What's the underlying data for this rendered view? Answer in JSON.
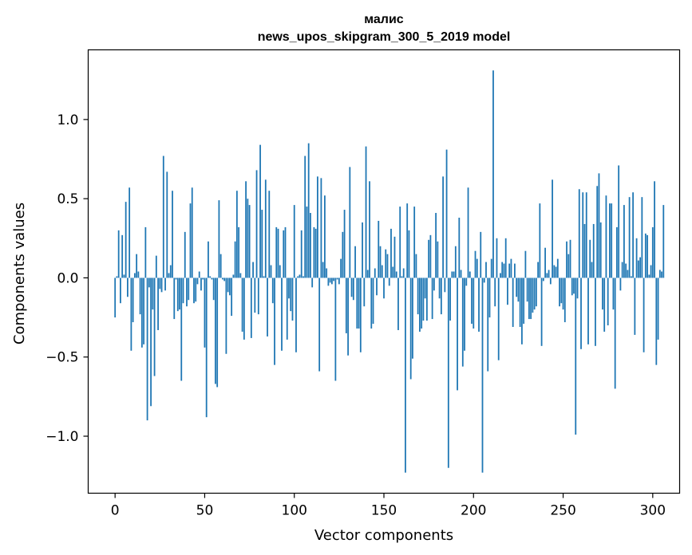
{
  "chart_data": {
    "type": "bar",
    "title": "малис",
    "subtitle": "news_upos_skipgram_300_5_2019 model",
    "xlabel": "Vector components",
    "ylabel": "Components values",
    "xlim": [
      -15,
      315
    ],
    "ylim": [
      -1.36,
      1.44
    ],
    "xticks": [
      0,
      50,
      100,
      150,
      200,
      250,
      300
    ],
    "xtick_labels": [
      "0",
      "50",
      "100",
      "150",
      "200",
      "250",
      "300"
    ],
    "yticks": [
      -1.0,
      -0.5,
      0.0,
      0.5,
      1.0
    ],
    "ytick_labels": [
      "−1.0",
      "−0.5",
      "0.0",
      "0.5",
      "1.0"
    ],
    "grid": false,
    "bar_color": "#1f77b4",
    "values": [
      -0.25,
      0.01,
      0.3,
      -0.16,
      0.27,
      0.02,
      0.48,
      -0.12,
      0.57,
      -0.46,
      -0.28,
      0.03,
      0.15,
      0.04,
      -0.23,
      -0.44,
      -0.42,
      0.32,
      -0.9,
      -0.06,
      -0.81,
      -0.2,
      -0.62,
      0.14,
      -0.33,
      -0.07,
      -0.09,
      0.77,
      -0.08,
      0.67,
      0.03,
      0.08,
      0.55,
      -0.26,
      -0.01,
      -0.21,
      -0.2,
      -0.65,
      -0.16,
      0.29,
      -0.18,
      -0.14,
      0.47,
      0.57,
      -0.16,
      -0.15,
      -0.04,
      0.04,
      -0.08,
      -0.01,
      -0.44,
      -0.88,
      0.23,
      0.01,
      -0.01,
      -0.14,
      -0.67,
      -0.69,
      0.49,
      0.15,
      -0.01,
      -0.02,
      -0.48,
      -0.09,
      -0.11,
      -0.24,
      0.02,
      0.23,
      0.55,
      0.32,
      0.03,
      -0.34,
      -0.39,
      0.61,
      0.5,
      0.46,
      -0.38,
      0.1,
      -0.22,
      0.68,
      -0.23,
      0.84,
      0.43,
      0.01,
      0.62,
      -0.37,
      0.55,
      0.08,
      -0.16,
      -0.55,
      0.32,
      0.31,
      0.08,
      -0.46,
      0.3,
      0.32,
      -0.39,
      -0.13,
      -0.21,
      -0.27,
      0.46,
      -0.47,
      0.01,
      0.02,
      0.3,
      0.01,
      0.77,
      0.45,
      0.85,
      0.41,
      -0.06,
      0.32,
      0.31,
      0.64,
      -0.59,
      0.63,
      0.1,
      0.52,
      0.06,
      -0.05,
      -0.03,
      -0.04,
      -0.02,
      -0.65,
      -0.01,
      -0.04,
      0.12,
      0.29,
      0.43,
      -0.35,
      -0.49,
      0.7,
      -0.12,
      -0.14,
      0.2,
      -0.32,
      -0.32,
      -0.47,
      0.35,
      -0.18,
      0.83,
      0.05,
      0.61,
      -0.32,
      -0.29,
      0.06,
      -0.11,
      0.36,
      0.2,
      0.08,
      -0.13,
      0.18,
      0.15,
      -0.05,
      0.31,
      0.07,
      0.26,
      0.04,
      -0.33,
      0.45,
      0.01,
      0.06,
      -1.23,
      0.47,
      0.3,
      -0.64,
      -0.51,
      0.45,
      0.15,
      -0.23,
      -0.34,
      -0.32,
      -0.27,
      -0.13,
      -0.27,
      0.24,
      0.27,
      -0.26,
      -0.08,
      0.41,
      0.23,
      -0.13,
      -0.23,
      0.64,
      -0.09,
      0.81,
      -1.2,
      -0.27,
      0.04,
      0.04,
      0.2,
      -0.71,
      0.38,
      0.05,
      -0.56,
      -0.46,
      -0.05,
      0.57,
      0.04,
      -0.29,
      -0.32,
      0.17,
      0.12,
      -0.34,
      0.29,
      -1.23,
      -0.03,
      0.1,
      -0.59,
      -0.25,
      0.12,
      1.31,
      -0.18,
      0.25,
      -0.52,
      0.03,
      0.1,
      0.09,
      0.25,
      -0.17,
      0.09,
      0.12,
      -0.31,
      0.09,
      -0.12,
      -0.15,
      -0.31,
      -0.42,
      -0.29,
      0.17,
      -0.15,
      -0.26,
      -0.26,
      -0.22,
      -0.2,
      -0.18,
      0.1,
      0.47,
      -0.43,
      -0.02,
      0.19,
      0.03,
      0.05,
      -0.04,
      0.62,
      0.08,
      0.07,
      0.12,
      -0.18,
      -0.16,
      -0.2,
      -0.28,
      0.23,
      0.15,
      0.24,
      -0.11,
      -0.1,
      -0.99,
      -0.13,
      0.56,
      -0.45,
      0.54,
      0.34,
      0.54,
      -0.42,
      0.24,
      0.1,
      0.34,
      -0.43,
      0.58,
      0.66,
      0.35,
      -0.2,
      -0.34,
      0.52,
      -0.3,
      0.47,
      0.47,
      -0.2,
      -0.7,
      0.32,
      0.71,
      -0.08,
      0.1,
      0.46,
      0.09,
      0.05,
      0.51,
      0.01,
      0.54,
      -0.36,
      0.25,
      0.11,
      0.13,
      0.51,
      -0.47,
      0.28,
      0.27,
      0.02,
      0.08,
      0.32,
      0.61,
      -0.55,
      -0.39,
      0.05,
      0.04,
      0.46
    ]
  }
}
